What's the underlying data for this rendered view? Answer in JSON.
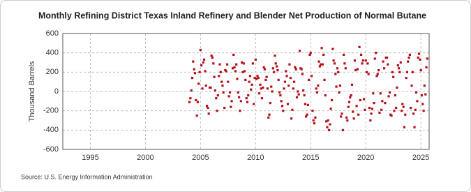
{
  "chart_data": {
    "type": "scatter",
    "title": "Monthly Refining District Texas Inland Refinery and Blender Net Production of Normal Butane",
    "y_label": "Thousand Barrels",
    "source": "Source: U.S. Energy Information Administration",
    "color": "#b5101a",
    "grid": true,
    "xlim": [
      1992.5,
      2025.75
    ],
    "xticks": [
      1995,
      2000,
      2005,
      2010,
      2015,
      2020,
      2025
    ],
    "ylim": [
      -600,
      600
    ],
    "yticks": [
      -600,
      -400,
      -200,
      0,
      200,
      400,
      600
    ],
    "x": [
      2004.0,
      2004.08,
      2004.17,
      2004.25,
      2004.33,
      2004.42,
      2004.5,
      2004.58,
      2004.67,
      2004.75,
      2004.83,
      2004.92,
      2005.0,
      2005.08,
      2005.17,
      2005.25,
      2005.33,
      2005.42,
      2005.5,
      2005.58,
      2005.67,
      2005.75,
      2005.83,
      2005.92,
      2006.0,
      2006.08,
      2006.17,
      2006.25,
      2006.33,
      2006.42,
      2006.5,
      2006.58,
      2006.67,
      2006.75,
      2006.83,
      2006.92,
      2007.0,
      2007.08,
      2007.17,
      2007.25,
      2007.33,
      2007.42,
      2007.5,
      2007.58,
      2007.67,
      2007.75,
      2007.83,
      2007.92,
      2008.0,
      2008.08,
      2008.17,
      2008.25,
      2008.33,
      2008.42,
      2008.5,
      2008.58,
      2008.67,
      2008.75,
      2008.83,
      2008.92,
      2009.0,
      2009.08,
      2009.17,
      2009.25,
      2009.33,
      2009.42,
      2009.5,
      2009.58,
      2009.67,
      2009.75,
      2009.83,
      2009.92,
      2010.0,
      2010.08,
      2010.17,
      2010.25,
      2010.33,
      2010.42,
      2010.5,
      2010.58,
      2010.67,
      2010.75,
      2010.83,
      2010.92,
      2011.0,
      2011.08,
      2011.17,
      2011.25,
      2011.33,
      2011.42,
      2011.5,
      2011.58,
      2011.67,
      2011.75,
      2011.83,
      2011.92,
      2012.0,
      2012.08,
      2012.17,
      2012.25,
      2012.33,
      2012.42,
      2012.5,
      2012.58,
      2012.67,
      2012.75,
      2012.83,
      2012.92,
      2013.0,
      2013.08,
      2013.17,
      2013.25,
      2013.33,
      2013.42,
      2013.5,
      2013.58,
      2013.67,
      2013.75,
      2013.83,
      2013.92,
      2014.0,
      2014.08,
      2014.17,
      2014.25,
      2014.33,
      2014.42,
      2014.5,
      2014.58,
      2014.67,
      2014.75,
      2014.83,
      2014.92,
      2015.0,
      2015.08,
      2015.17,
      2015.25,
      2015.33,
      2015.42,
      2015.5,
      2015.58,
      2015.67,
      2015.75,
      2015.83,
      2015.92,
      2016.0,
      2016.08,
      2016.17,
      2016.25,
      2016.33,
      2016.42,
      2016.5,
      2016.58,
      2016.67,
      2016.75,
      2016.83,
      2016.92,
      2017.0,
      2017.08,
      2017.17,
      2017.25,
      2017.33,
      2017.42,
      2017.5,
      2017.58,
      2017.67,
      2017.75,
      2017.83,
      2017.92,
      2018.0,
      2018.08,
      2018.17,
      2018.25,
      2018.33,
      2018.42,
      2018.5,
      2018.58,
      2018.67,
      2018.75,
      2018.83,
      2018.92,
      2019.0,
      2019.08,
      2019.17,
      2019.25,
      2019.33,
      2019.42,
      2019.5,
      2019.58,
      2019.67,
      2019.75,
      2019.83,
      2019.92,
      2020.0,
      2020.08,
      2020.17,
      2020.25,
      2020.33,
      2020.42,
      2020.5,
      2020.58,
      2020.67,
      2020.75,
      2020.83,
      2020.92,
      2021.0,
      2021.08,
      2021.17,
      2021.25,
      2021.33,
      2021.42,
      2021.5,
      2021.58,
      2021.67,
      2021.75,
      2021.83,
      2021.92,
      2022.0,
      2022.08,
      2022.17,
      2022.25,
      2022.33,
      2022.42,
      2022.5,
      2022.58,
      2022.67,
      2022.75,
      2022.83,
      2022.92,
      2023.0,
      2023.08,
      2023.17,
      2023.25,
      2023.33,
      2023.42,
      2023.5,
      2023.58,
      2023.67,
      2023.75,
      2023.83,
      2023.92,
      2024.0,
      2024.08,
      2024.17,
      2024.25,
      2024.33,
      2024.42,
      2024.5,
      2024.58,
      2024.67,
      2024.75,
      2024.83,
      2024.92,
      2025.0,
      2025.08,
      2025.17,
      2025.25,
      2025.33,
      2025.42,
      2025.5,
      2025.58
    ],
    "values": [
      -110,
      -70,
      10,
      140,
      310,
      230,
      190,
      -90,
      -250,
      -110,
      80,
      200,
      430,
      270,
      30,
      300,
      330,
      210,
      60,
      -150,
      -170,
      -230,
      40,
      40,
      370,
      350,
      290,
      150,
      10,
      -70,
      -200,
      -40,
      160,
      280,
      200,
      100,
      60,
      -10,
      -170,
      220,
      210,
      280,
      100,
      -50,
      -10,
      -160,
      -100,
      240,
      380,
      250,
      210,
      280,
      130,
      -10,
      -60,
      -200,
      -100,
      300,
      200,
      290,
      210,
      120,
      -70,
      -110,
      -40,
      100,
      160,
      20,
      70,
      290,
      -130,
      140,
      330,
      130,
      160,
      140,
      -20,
      70,
      30,
      -70,
      40,
      250,
      230,
      120,
      150,
      30,
      -270,
      -240,
      -120,
      50,
      0,
      240,
      200,
      370,
      290,
      260,
      220,
      120,
      -10,
      -40,
      -100,
      -150,
      -200,
      30,
      100,
      210,
      160,
      -130,
      60,
      280,
      140,
      -280,
      -190,
      30,
      100,
      250,
      230,
      -60,
      0,
      -30,
      420,
      240,
      230,
      180,
      10,
      -40,
      -130,
      -260,
      -240,
      -140,
      120,
      380,
      400,
      160,
      -200,
      -300,
      -330,
      -270,
      30,
      -10,
      60,
      310,
      260,
      280,
      450,
      280,
      380,
      120,
      -40,
      -310,
      -370,
      -300,
      -400,
      -340,
      -180,
      -90,
      440,
      320,
      290,
      180,
      50,
      240,
      200,
      -10,
      60,
      -260,
      -230,
      -400,
      380,
      290,
      240,
      -270,
      -300,
      -160,
      -110,
      -60,
      -40,
      70,
      -210,
      -280,
      320,
      220,
      -150,
      230,
      -240,
      460,
      -90,
      380,
      290,
      320,
      -80,
      -190,
      320,
      200,
      290,
      180,
      -170,
      -300,
      -230,
      -180,
      -20,
      -120,
      340,
      400,
      160,
      180,
      220,
      -220,
      -20,
      -190,
      -100,
      310,
      240,
      -120,
      350,
      350,
      280,
      -50,
      -10,
      -240,
      -250,
      200,
      150,
      -200,
      -40,
      -170,
      40,
      270,
      240,
      200,
      300,
      -200,
      -130,
      -160,
      -370,
      -240,
      140,
      200,
      310,
      350,
      380,
      -170,
      60,
      200,
      -230,
      -370,
      -190,
      -10,
      -100,
      350,
      390,
      330,
      220,
      -40,
      -130,
      -200,
      60,
      -30,
      250,
      340
    ]
  }
}
